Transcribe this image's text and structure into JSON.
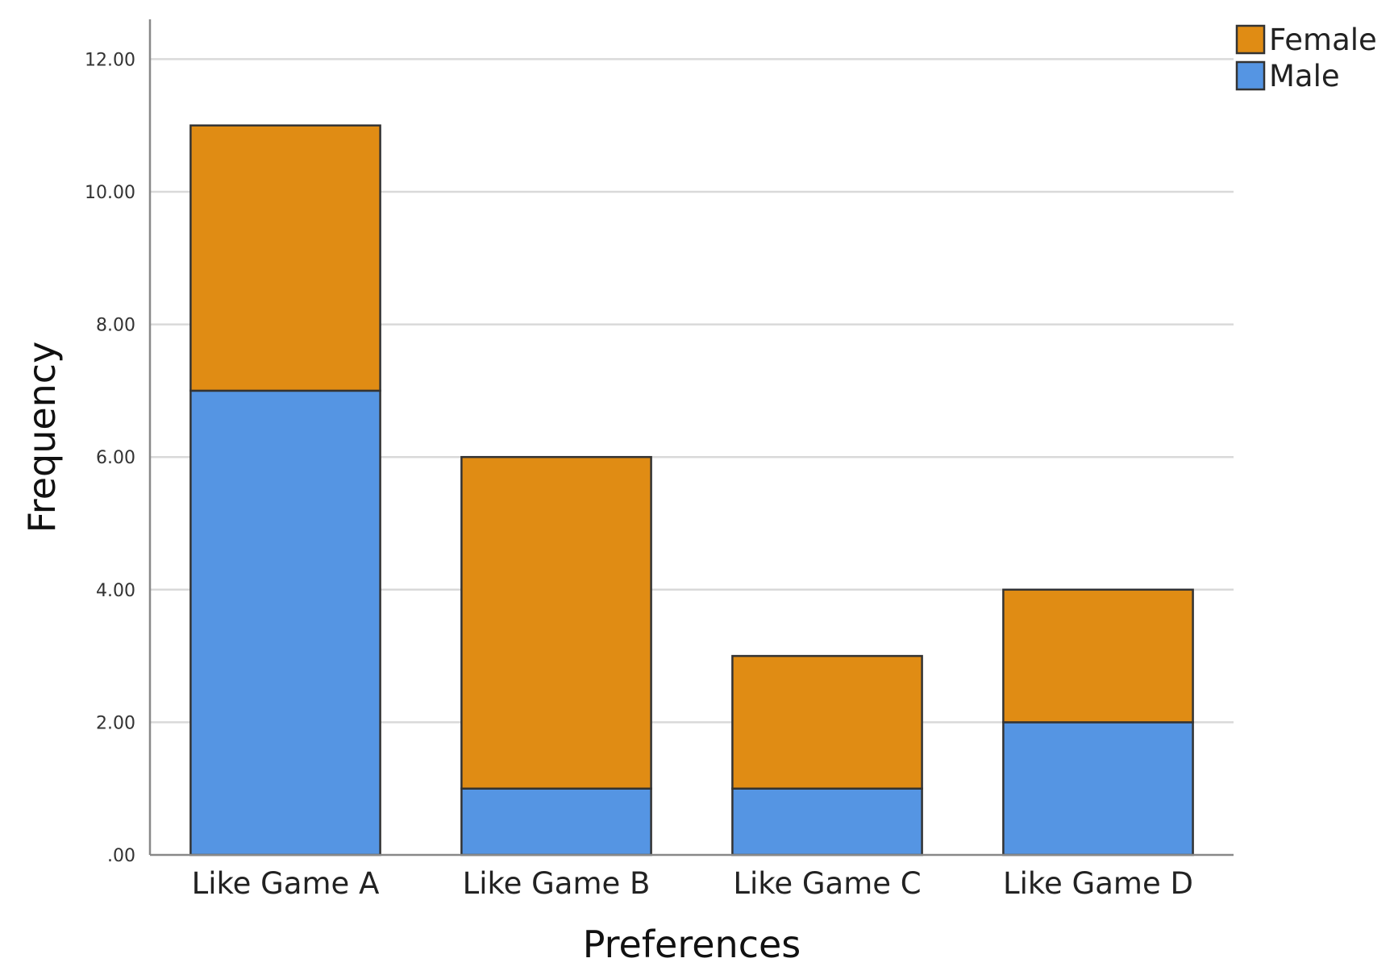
{
  "chart_data": {
    "type": "bar",
    "stacked": true,
    "categories": [
      "Like Game A",
      "Like Game B",
      "Like Game C",
      "Like Game D"
    ],
    "series": [
      {
        "name": "Male",
        "values": [
          7,
          1,
          1,
          2
        ],
        "color": "#5595e3"
      },
      {
        "name": "Female",
        "values": [
          4,
          5,
          2,
          2
        ],
        "color": "#e08c14"
      }
    ],
    "legend_order": [
      "Female",
      "Male"
    ],
    "legend_position": "top-right",
    "xlabel": "Preferences",
    "ylabel": "Frequency",
    "ylim": [
      0,
      12.6
    ],
    "yticks": [
      0,
      2,
      4,
      6,
      8,
      10,
      12
    ],
    "ytick_labels": [
      ".00",
      "2.00",
      "4.00",
      "6.00",
      "8.00",
      "10.00",
      "12.00"
    ],
    "grid": true,
    "grid_color": "#d9d9d9",
    "bar_edge_color": "#333333"
  }
}
